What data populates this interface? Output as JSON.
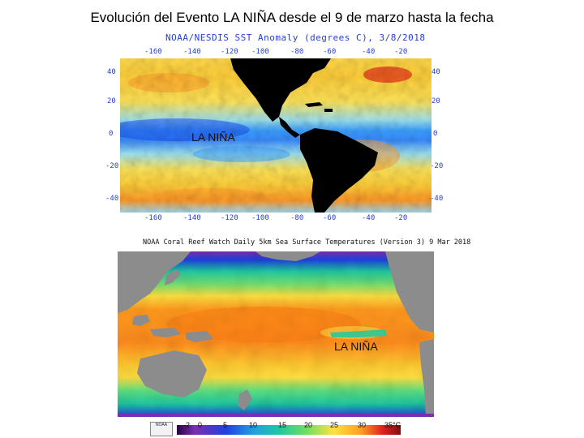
{
  "title": "Evolución del Evento LA NIÑA desde el 9 de marzo hasta la fecha",
  "top_map": {
    "header": "NOAA/NESDIS SST Anomaly (degrees C), 3/8/2018",
    "label": "LA NIÑA",
    "lon_ticks": [
      "-160",
      "-140",
      "-120",
      "-100",
      "-80",
      "-60",
      "-40",
      "-20"
    ],
    "lat_ticks_left": [
      "40",
      "20",
      "0",
      "-20",
      "-40"
    ],
    "lat_ticks_right": [
      "40",
      "20",
      "0",
      "-20",
      "-40"
    ],
    "colors": {
      "land": "#000000",
      "cold": "#1e50f0",
      "cool": "#3aa0ff",
      "neutral": "#9fe3f0",
      "warm": "#ffd84a",
      "hot": "#ff7a1a",
      "very_hot": "#e01010"
    }
  },
  "bottom_map": {
    "header": "NOAA Coral Reef Watch Daily 5km Sea Surface Temperatures (Version 3)   9 Mar 2018",
    "label": "LA NIÑA",
    "colorbar_ticks": [
      "-2",
      "0",
      "5",
      "10",
      "15",
      "20",
      "25",
      "30",
      "35°C"
    ],
    "logo_text": "NOAA",
    "colors": {
      "land": "#8c8c8c",
      "polar": "#7a2fb0",
      "cold": "#2040e0",
      "mid": "#20c8a0",
      "warm": "#ffc830",
      "hot": "#ff8c1e"
    }
  }
}
